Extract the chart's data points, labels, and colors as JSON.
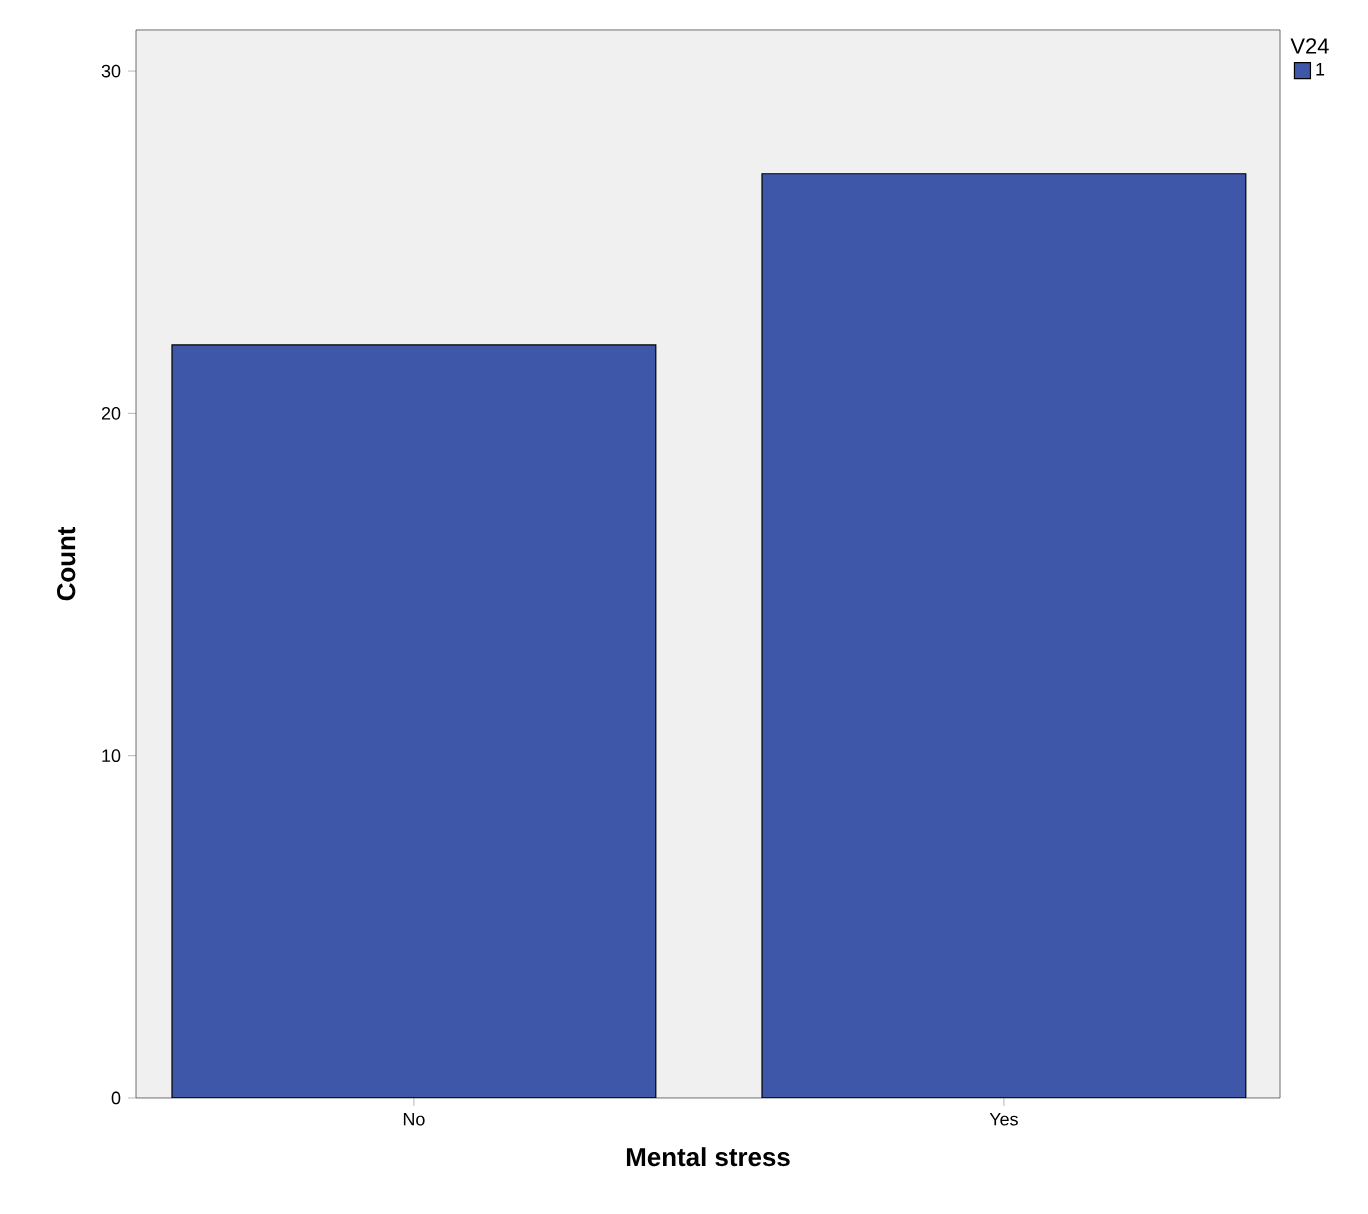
{
  "chart_data": {
    "type": "bar",
    "xlabel": "Mental stress",
    "ylabel": "Count",
    "legend_title": "V24",
    "legend": "top right",
    "categories": [
      "No",
      "Yes"
    ],
    "series": [
      {
        "name": "1",
        "color": "#3f57a8",
        "values": [
          22,
          27
        ]
      }
    ],
    "ylim": [
      0,
      31.2
    ],
    "yticks": [
      0,
      10,
      20,
      30
    ]
  }
}
